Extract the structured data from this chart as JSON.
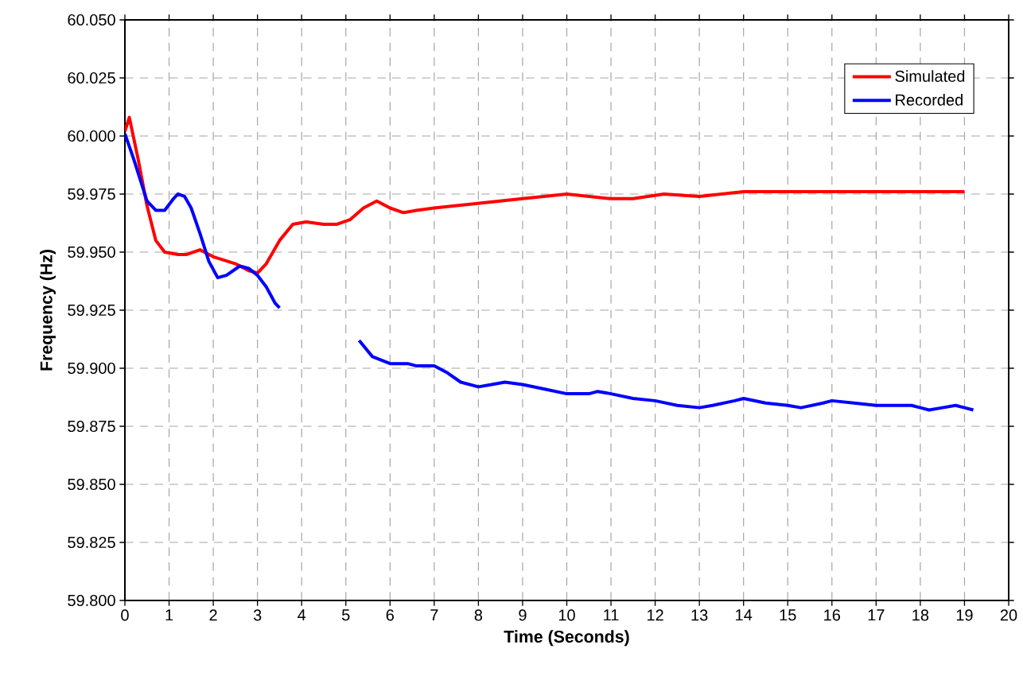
{
  "chart_data": {
    "type": "line",
    "xlabel": "Time (Seconds)",
    "ylabel": "Frequency (Hz)",
    "xlim": [
      0,
      20
    ],
    "xticks": [
      0,
      1,
      2,
      3,
      4,
      5,
      6,
      7,
      8,
      9,
      10,
      11,
      12,
      13,
      14,
      15,
      16,
      17,
      18,
      19,
      20
    ],
    "ylim": [
      59.8,
      60.05
    ],
    "yticks": [
      {
        "value": 59.8,
        "label": "59.800"
      },
      {
        "value": 59.825,
        "label": "59.825"
      },
      {
        "value": 59.85,
        "label": "59.850"
      },
      {
        "value": 59.875,
        "label": "59.875"
      },
      {
        "value": 59.9,
        "label": "59.900"
      },
      {
        "value": 59.925,
        "label": "59.925"
      },
      {
        "value": 59.95,
        "label": "59.950"
      },
      {
        "value": 59.975,
        "label": "59.975"
      },
      {
        "value": 60.0,
        "label": "60.000"
      },
      {
        "value": 60.025,
        "label": "60.025"
      },
      {
        "value": 60.05,
        "label": "60.050"
      }
    ],
    "grid": true,
    "legend": "top right",
    "marker": "none",
    "line_style": "solid",
    "series": [
      {
        "name": "Simulated",
        "color": "#ff0000",
        "x": [
          0,
          0.1,
          0.3,
          0.5,
          0.7,
          0.9,
          1.2,
          1.4,
          1.7,
          2.0,
          2.5,
          2.8,
          3.0,
          3.2,
          3.5,
          3.8,
          4.1,
          4.5,
          4.8,
          5.1,
          5.4,
          5.7,
          6.0,
          6.3,
          6.6,
          7.0,
          8.0,
          9.0,
          10.0,
          11.0,
          11.5,
          12.2,
          13.0,
          14.0,
          15.0,
          16.0,
          17.0,
          18.0,
          19.0
        ],
        "values": [
          60.002,
          60.008,
          59.99,
          59.97,
          59.955,
          59.95,
          59.949,
          59.949,
          59.951,
          59.948,
          59.945,
          59.942,
          59.941,
          59.945,
          59.955,
          59.962,
          59.963,
          59.962,
          59.962,
          59.964,
          59.969,
          59.972,
          59.969,
          59.967,
          59.968,
          59.969,
          59.971,
          59.973,
          59.975,
          59.973,
          59.973,
          59.975,
          59.974,
          59.976,
          59.976,
          59.976,
          59.976,
          59.976,
          59.976
        ]
      },
      {
        "name": "Recorded",
        "color": "#0000ff",
        "x": [
          0,
          0.2,
          0.5,
          0.7,
          0.9,
          1.1,
          1.2,
          1.35,
          1.5,
          1.7,
          1.9,
          2.1,
          2.3,
          2.6,
          2.8,
          3.0,
          3.2,
          3.4,
          3.5,
          4.4,
          5.3,
          5.6,
          6.0,
          6.4,
          6.6,
          7.0,
          7.3,
          7.6,
          8.0,
          8.3,
          8.6,
          9.0,
          9.5,
          10.0,
          10.5,
          10.7,
          11.0,
          11.5,
          12.0,
          12.5,
          13.0,
          13.3,
          13.8,
          14.0,
          14.5,
          15.0,
          15.3,
          15.8,
          16.0,
          16.5,
          17.0,
          17.8,
          18.0,
          18.2,
          18.5,
          18.8,
          19.0,
          19.2
        ],
        "values": [
          60.001,
          59.99,
          59.972,
          59.968,
          59.968,
          59.973,
          59.975,
          59.974,
          59.969,
          59.958,
          59.946,
          59.939,
          59.94,
          59.944,
          59.943,
          59.94,
          59.935,
          59.928,
          59.926,
          null,
          59.912,
          59.905,
          59.902,
          59.902,
          59.901,
          59.901,
          59.898,
          59.894,
          59.892,
          59.893,
          59.894,
          59.893,
          59.891,
          59.889,
          59.889,
          59.89,
          59.889,
          59.887,
          59.886,
          59.884,
          59.883,
          59.884,
          59.886,
          59.887,
          59.885,
          59.884,
          59.883,
          59.885,
          59.886,
          59.885,
          59.884,
          59.884,
          59.883,
          59.882,
          59.883,
          59.884,
          59.883,
          59.882
        ]
      }
    ]
  }
}
